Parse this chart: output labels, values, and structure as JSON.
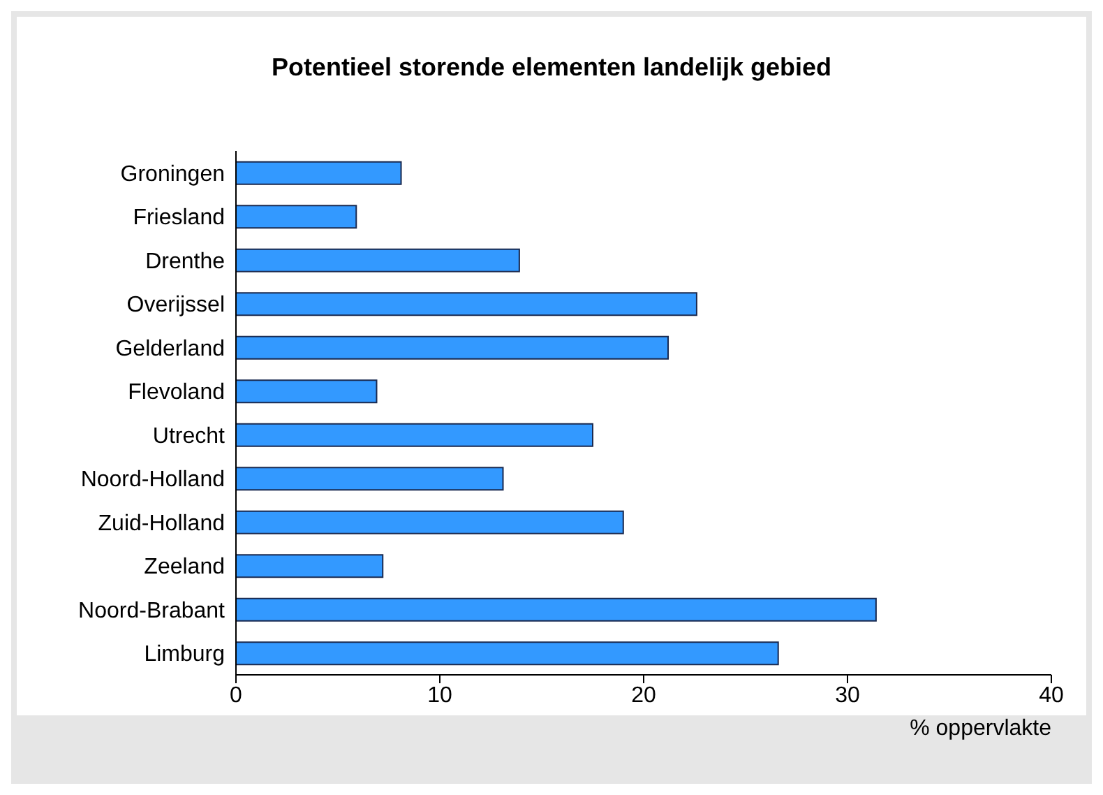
{
  "chart_data": {
    "type": "bar",
    "orientation": "horizontal",
    "title": "Potentieel storende elementen landelijk gebied",
    "xlabel": "% oppervlakte",
    "categories": [
      "Groningen",
      "Friesland",
      "Drenthe",
      "Overijssel",
      "Gelderland",
      "Flevoland",
      "Utrecht",
      "Noord-Holland",
      "Zuid-Holland",
      "Zeeland",
      "Noord-Brabant",
      "Limburg"
    ],
    "values": [
      8.1,
      5.9,
      13.9,
      22.6,
      21.2,
      6.9,
      17.5,
      13.1,
      19.0,
      7.2,
      31.4,
      26.6
    ],
    "color": "#3399ff",
    "xlim": [
      0,
      40
    ],
    "xticks": [
      0,
      10,
      20,
      30,
      40
    ],
    "grid": false,
    "legend": false
  }
}
